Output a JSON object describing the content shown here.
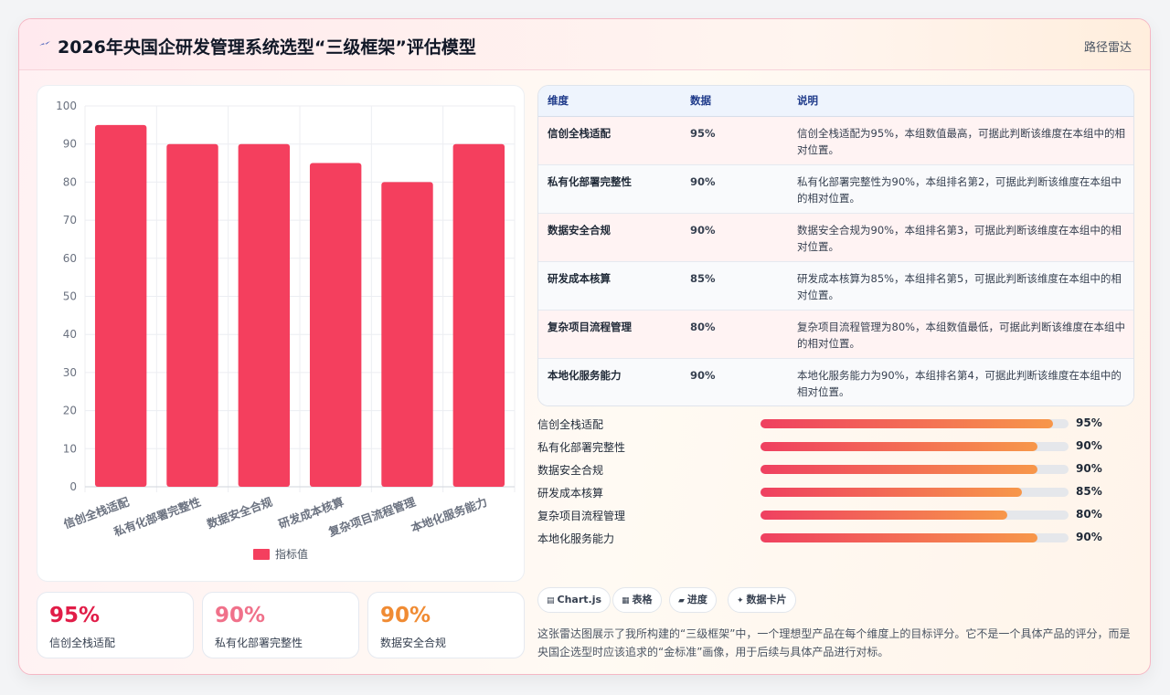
{
  "header": {
    "title": "2026年央国企研发管理系统选型“三级框架”评估模型",
    "right_label": "路径雷达",
    "icon": "lightning-icon"
  },
  "chart_data": {
    "type": "bar",
    "categories": [
      "信创全栈适配",
      "私有化部署完整性",
      "数据安全合规",
      "研发成本核算",
      "复杂项目流程管理",
      "本地化服务能力"
    ],
    "series": [
      {
        "name": "指标值",
        "values": [
          95,
          90,
          90,
          85,
          80,
          90
        ]
      }
    ],
    "ylim": [
      0,
      100
    ],
    "yticks": [
      0,
      10,
      20,
      30,
      40,
      50,
      60,
      70,
      80,
      90,
      100
    ],
    "grid": true,
    "legend": "bottom",
    "bar_color": "#f43f5e"
  },
  "kpis": [
    {
      "value": "95%",
      "label": "信创全栈适配",
      "color": "#e11d48"
    },
    {
      "value": "90%",
      "label": "私有化部署完整性",
      "color": "#f0718a"
    },
    {
      "value": "90%",
      "label": "数据安全合规",
      "color": "#f08b33"
    }
  ],
  "table": {
    "headers": [
      "维度",
      "数据",
      "说明"
    ],
    "rows": [
      {
        "dim": "信创全栈适配",
        "val": "95%",
        "note": "信创全栈适配为95%，本组数值最高，可据此判断该维度在本组中的相对位置。"
      },
      {
        "dim": "私有化部署完整性",
        "val": "90%",
        "note": "私有化部署完整性为90%，本组排名第2，可据此判断该维度在本组中的相对位置。"
      },
      {
        "dim": "数据安全合规",
        "val": "90%",
        "note": "数据安全合规为90%，本组排名第3，可据此判断该维度在本组中的相对位置。"
      },
      {
        "dim": "研发成本核算",
        "val": "85%",
        "note": "研发成本核算为85%，本组排名第5，可据此判断该维度在本组中的相对位置。"
      },
      {
        "dim": "复杂项目流程管理",
        "val": "80%",
        "note": "复杂项目流程管理为80%，本组数值最低，可据此判断该维度在本组中的相对位置。"
      },
      {
        "dim": "本地化服务能力",
        "val": "90%",
        "note": "本地化服务能力为90%，本组排名第4，可据此判断该维度在本组中的相对位置。"
      }
    ]
  },
  "progress": [
    {
      "label": "信创全栈适配",
      "value": 95,
      "text": "95%"
    },
    {
      "label": "私有化部署完整性",
      "value": 90,
      "text": "90%"
    },
    {
      "label": "数据安全合规",
      "value": 90,
      "text": "90%"
    },
    {
      "label": "研发成本核算",
      "value": 85,
      "text": "85%"
    },
    {
      "label": "复杂项目流程管理",
      "value": 80,
      "text": "80%"
    },
    {
      "label": "本地化服务能力",
      "value": 90,
      "text": "90%"
    }
  ],
  "tags": [
    {
      "label": "Chart.js",
      "icon": "chart-icon"
    },
    {
      "label": "表格",
      "icon": "table-icon"
    },
    {
      "label": "进度",
      "icon": "progress-icon"
    },
    {
      "label": "数据卡片",
      "icon": "sparkle-icon"
    }
  ],
  "description": "这张雷达图展示了我所构建的“三级框架”中，一个理想型产品在每个维度上的目标评分。它不是一个具体产品的评分，而是央国企选型时应该追求的“金标准”画像，用于后续与具体产品进行对标。"
}
